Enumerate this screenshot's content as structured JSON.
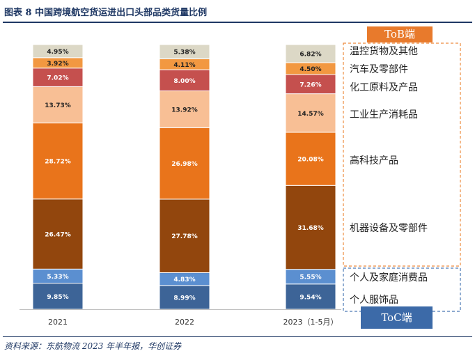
{
  "figure": {
    "title": "图表 8   中国跨境航空货运进出口头部品类货量比例",
    "source": "资料来源：东航物流 2023 年半年报，华创证券"
  },
  "badges": {
    "tob": "ToB端",
    "toc": "ToC端"
  },
  "colors": {
    "title": "#1f3864",
    "tob_badge": "#e87a2c",
    "toc_badge": "#3c6aa8",
    "tob_box": "#ed8b3e",
    "toc_box": "#4a78b5"
  },
  "chart_data": {
    "type": "bar",
    "stacked": true,
    "percent": true,
    "categories": [
      "2021",
      "2022",
      "2023（1-5月）"
    ],
    "ylim": [
      0,
      100
    ],
    "series": [
      {
        "name": "个人服饰品",
        "color": "#3d6497",
        "values": [
          9.85,
          8.99,
          9.54
        ],
        "labels": [
          "9.85%",
          "8.99%",
          "9.54%"
        ]
      },
      {
        "name": "个人及家庭消费品",
        "color": "#5b8fd0",
        "values": [
          5.33,
          4.83,
          5.55
        ],
        "labels": [
          "5.33%",
          "4.83%",
          "5.55%"
        ]
      },
      {
        "name": "机器设备及零部件",
        "color": "#92460d",
        "values": [
          26.47,
          27.78,
          31.68
        ],
        "labels": [
          "26.47%",
          "27.78%",
          "31.68%"
        ]
      },
      {
        "name": "高科技产品",
        "color": "#e9741b",
        "values": [
          28.72,
          26.98,
          20.08
        ],
        "labels": [
          "28.72%",
          "26.98%",
          "20.08%"
        ]
      },
      {
        "name": "工业生产消耗品",
        "color": "#f8bf95",
        "values": [
          13.73,
          13.92,
          14.57
        ],
        "labels": [
          "13.73%",
          "13.92%",
          "14.57%"
        ]
      },
      {
        "name": "化工原料及产品",
        "color": "#c5504e",
        "values": [
          7.02,
          8.0,
          7.26
        ],
        "labels": [
          "7.02%",
          "8.00%",
          "7.26%"
        ]
      },
      {
        "name": "汽车及零部件",
        "color": "#f29841",
        "values": [
          3.92,
          4.11,
          4.5
        ],
        "labels": [
          "3.92%",
          "4.11%",
          "4.50%"
        ]
      },
      {
        "name": "温控货物及其他",
        "color": "#dcd8c6",
        "values": [
          4.95,
          5.38,
          6.82
        ],
        "labels": [
          "4.95%",
          "5.38%",
          "6.82%"
        ]
      }
    ]
  }
}
